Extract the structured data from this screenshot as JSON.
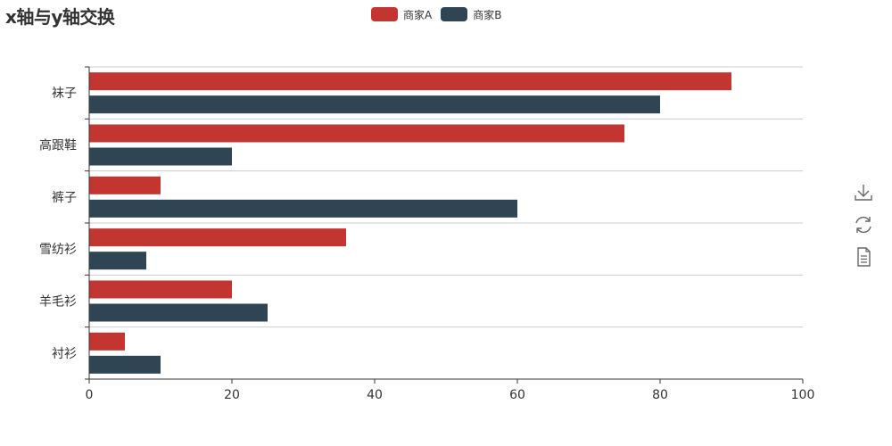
{
  "title": "x轴与y轴交换",
  "colors": {
    "series_a": "#c23531",
    "series_b": "#2f4554",
    "axis": "#333333",
    "grid": "#cccccc",
    "icon": "#666666"
  },
  "toolbox": {
    "icons": [
      "download-icon",
      "refresh-icon",
      "data-view-icon"
    ]
  },
  "chart_data": {
    "type": "bar",
    "orientation": "horizontal",
    "title": "x轴与y轴交换",
    "categories": [
      "衬衫",
      "羊毛衫",
      "雪纺衫",
      "裤子",
      "高跟鞋",
      "袜子"
    ],
    "series": [
      {
        "name": "商家A",
        "values": [
          5,
          20,
          36,
          10,
          75,
          90
        ]
      },
      {
        "name": "商家B",
        "values": [
          10,
          25,
          8,
          60,
          20,
          80
        ]
      }
    ],
    "xlim": [
      0,
      100
    ],
    "xticks": [
      0,
      20,
      40,
      60,
      80,
      100
    ],
    "grid": true,
    "legend": "top-center"
  }
}
